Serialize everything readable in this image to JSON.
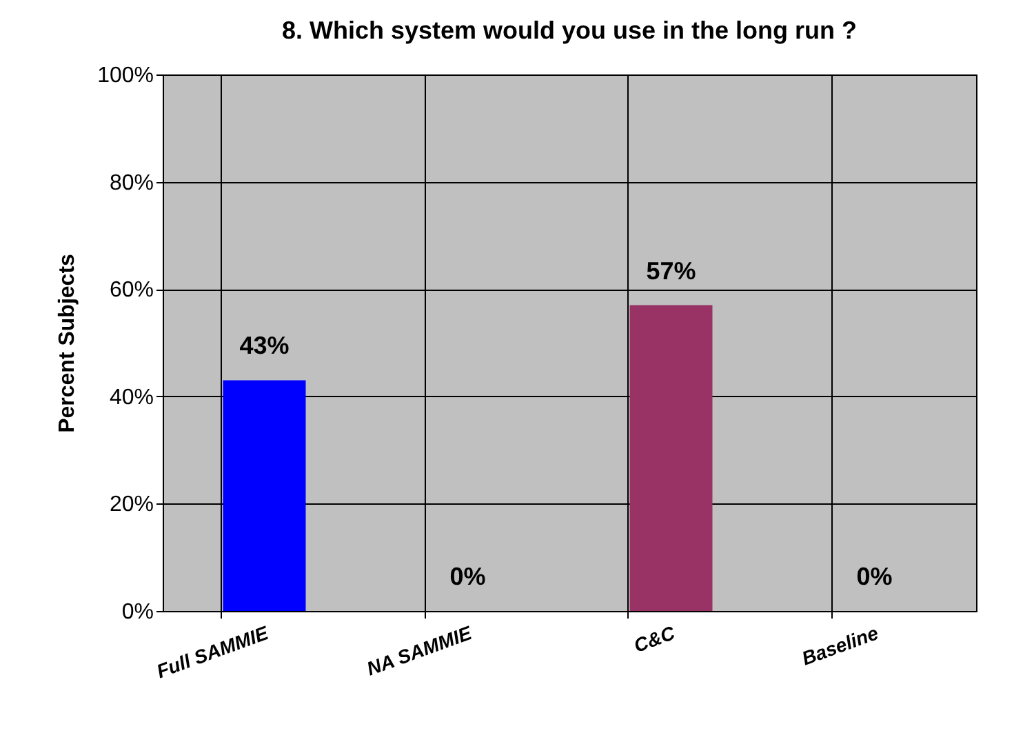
{
  "chart_data": {
    "type": "bar",
    "title": "8. Which system would you use in the long run ?",
    "ylabel": "Percent Subjects",
    "categories": [
      "Full SAMMIE",
      "NA SAMMIE",
      "C&C",
      "Baseline"
    ],
    "values": [
      43,
      0,
      57,
      0
    ],
    "colors": [
      "#0000ff",
      "#3366ff",
      "#993366",
      "#008000"
    ],
    "value_labels": [
      "43%",
      "0%",
      "57%",
      "0%"
    ],
    "ylim": [
      0,
      100
    ],
    "yticks": [
      {
        "value": 0,
        "label": "0%"
      },
      {
        "value": 20,
        "label": "20%"
      },
      {
        "value": 40,
        "label": "40%"
      },
      {
        "value": 60,
        "label": "60%"
      },
      {
        "value": 80,
        "label": "80%"
      },
      {
        "value": 100,
        "label": "100%"
      }
    ],
    "grid": true
  }
}
